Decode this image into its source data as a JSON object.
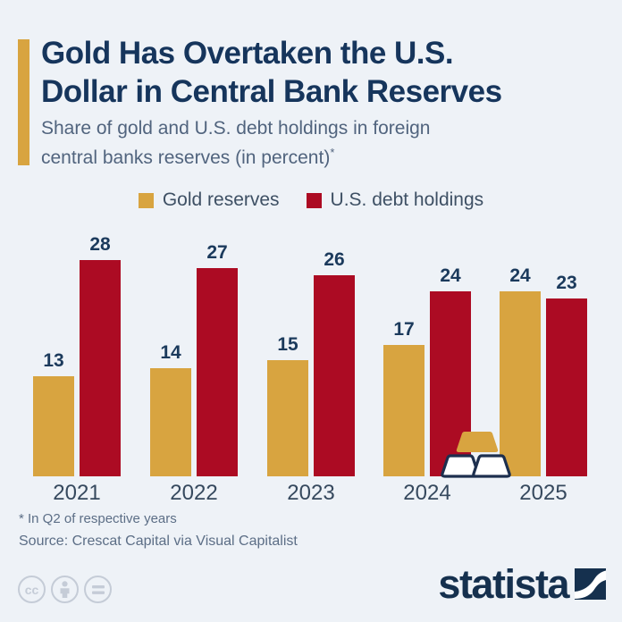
{
  "header": {
    "title_line1": "Gold Has Overtaken the U.S.",
    "title_line2": "Dollar in Central Bank Reserves",
    "subtitle_line1": "Share of gold and U.S. debt holdings in foreign",
    "subtitle_line2": "central banks reserves (in percent)",
    "footnote_marker": "*"
  },
  "legend": [
    {
      "label": "Gold reserves",
      "color": "#d8a440"
    },
    {
      "label": "U.S. debt holdings",
      "color": "#ac0b23"
    }
  ],
  "chart_data": {
    "type": "bar",
    "categories": [
      "2021",
      "2022",
      "2023",
      "2024",
      "2025"
    ],
    "series": [
      {
        "name": "Gold reserves",
        "color": "#d8a440",
        "values": [
          13,
          14,
          15,
          17,
          24
        ]
      },
      {
        "name": "U.S. debt holdings",
        "color": "#ac0b23",
        "values": [
          28,
          27,
          26,
          24,
          23
        ]
      }
    ],
    "title": "Share of gold and U.S. debt holdings in foreign central banks reserves (in percent)",
    "xlabel": "",
    "ylabel": "",
    "ylim": [
      0,
      28
    ],
    "grid": false,
    "value_labels": true,
    "legend_position": "top"
  },
  "footer": {
    "footnote": "* In Q2 of respective years",
    "source": "Source: Crescat Capital via Visual Capitalist",
    "license": {
      "cc": "cc",
      "equals": "="
    },
    "brand": "statista"
  },
  "colors": {
    "background": "#eef2f7",
    "gold": "#d8a440",
    "red": "#ac0b23",
    "navy": "#15304e",
    "text_muted": "#5c6e86"
  }
}
